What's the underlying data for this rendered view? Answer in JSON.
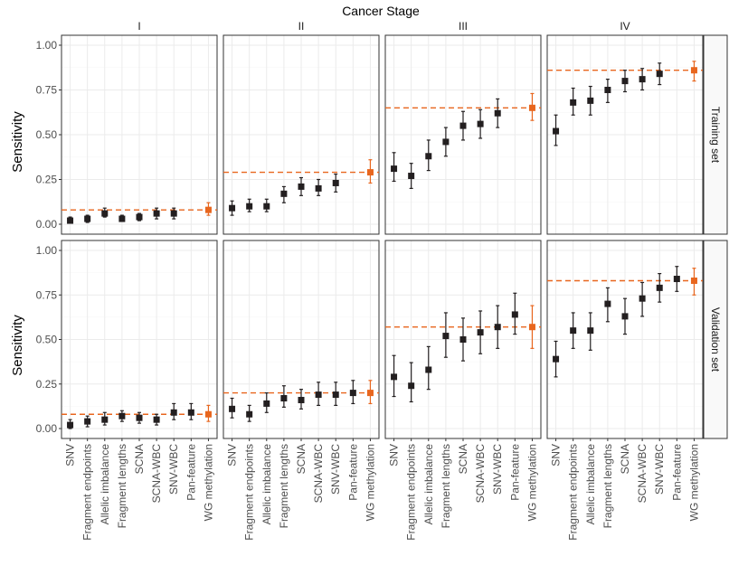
{
  "chart_data": {
    "type": "scatter",
    "title": "Cancer Stage",
    "ylabel": "Sensitivity",
    "ylim": [
      0,
      1
    ],
    "yticks": [
      "0.00",
      "0.25",
      "0.50",
      "0.75",
      "1.00"
    ],
    "ytick_values": [
      0,
      0.25,
      0.5,
      0.75,
      1.0
    ],
    "columns": [
      "I",
      "II",
      "III",
      "IV"
    ],
    "rows": [
      "Training set",
      "Validation set"
    ],
    "categories": [
      "SNV",
      "Fragment endpoints",
      "Allelic imbalance",
      "Fragment lengths",
      "SCNA",
      "SCNA-WBC",
      "SNV-WBC",
      "Pan-feature",
      "WG methylation"
    ],
    "colors": {
      "point": "#231f20",
      "highlight": "#e8661e",
      "reference": "#e8661e"
    },
    "panels": [
      {
        "row": "Training set",
        "column": "I",
        "categories": [
          "SNV",
          "Fragment endpoints",
          "Allelic imbalance",
          "Fragment lengths",
          "SCNA",
          "SCNA-WBC",
          "SNV-WBC",
          "WG methylation"
        ],
        "values": [
          0.02,
          0.03,
          0.06,
          0.03,
          0.04,
          0.06,
          0.06,
          0.08
        ],
        "lower": [
          0.01,
          0.01,
          0.04,
          0.02,
          0.02,
          0.03,
          0.03,
          0.05
        ],
        "upper": [
          0.04,
          0.05,
          0.09,
          0.05,
          0.06,
          0.09,
          0.09,
          0.12
        ],
        "reference": 0.08
      },
      {
        "row": "Training set",
        "column": "II",
        "categories": [
          "SNV",
          "Fragment endpoints",
          "Allelic imbalance",
          "Fragment lengths",
          "SCNA",
          "SCNA-WBC",
          "SNV-WBC",
          "WG methylation"
        ],
        "values": [
          0.09,
          0.1,
          0.1,
          0.17,
          0.21,
          0.2,
          0.23,
          0.29
        ],
        "lower": [
          0.05,
          0.07,
          0.07,
          0.12,
          0.16,
          0.16,
          0.18,
          0.23
        ],
        "upper": [
          0.13,
          0.14,
          0.14,
          0.21,
          0.26,
          0.25,
          0.28,
          0.36
        ],
        "reference": 0.29
      },
      {
        "row": "Training set",
        "column": "III",
        "categories": [
          "SNV",
          "Fragment endpoints",
          "Allelic imbalance",
          "Fragment lengths",
          "SCNA",
          "SCNA-WBC",
          "SNV-WBC",
          "WG methylation"
        ],
        "values": [
          0.31,
          0.27,
          0.38,
          0.46,
          0.55,
          0.56,
          0.62,
          0.65
        ],
        "lower": [
          0.24,
          0.2,
          0.3,
          0.38,
          0.47,
          0.48,
          0.54,
          0.58
        ],
        "upper": [
          0.4,
          0.34,
          0.47,
          0.54,
          0.63,
          0.64,
          0.7,
          0.73
        ],
        "reference": 0.65
      },
      {
        "row": "Training set",
        "column": "IV",
        "categories": [
          "SNV",
          "Fragment endpoints",
          "Allelic imbalance",
          "Fragment lengths",
          "SCNA",
          "SCNA-WBC",
          "SNV-WBC",
          "WG methylation"
        ],
        "values": [
          0.52,
          0.68,
          0.69,
          0.75,
          0.8,
          0.81,
          0.84,
          0.86
        ],
        "lower": [
          0.44,
          0.61,
          0.61,
          0.68,
          0.74,
          0.75,
          0.78,
          0.8
        ],
        "upper": [
          0.61,
          0.76,
          0.77,
          0.81,
          0.86,
          0.87,
          0.9,
          0.91
        ],
        "reference": 0.86
      },
      {
        "row": "Validation set",
        "column": "I",
        "categories": [
          "SNV",
          "Fragment endpoints",
          "Allelic imbalance",
          "Fragment lengths",
          "SCNA",
          "SCNA-WBC",
          "SNV-WBC",
          "Pan-feature",
          "WG methylation"
        ],
        "values": [
          0.02,
          0.04,
          0.05,
          0.07,
          0.06,
          0.05,
          0.09,
          0.09,
          0.08
        ],
        "lower": [
          0.0,
          0.01,
          0.02,
          0.04,
          0.03,
          0.02,
          0.05,
          0.05,
          0.04
        ],
        "upper": [
          0.05,
          0.07,
          0.09,
          0.1,
          0.09,
          0.08,
          0.14,
          0.14,
          0.13
        ],
        "reference": 0.08
      },
      {
        "row": "Validation set",
        "column": "II",
        "categories": [
          "SNV",
          "Fragment endpoints",
          "Allelic imbalance",
          "Fragment lengths",
          "SCNA",
          "SCNA-WBC",
          "SNV-WBC",
          "Pan-feature",
          "WG methylation"
        ],
        "values": [
          0.11,
          0.08,
          0.14,
          0.17,
          0.16,
          0.19,
          0.19,
          0.2,
          0.2
        ],
        "lower": [
          0.06,
          0.04,
          0.09,
          0.12,
          0.11,
          0.13,
          0.13,
          0.14,
          0.14
        ],
        "upper": [
          0.17,
          0.13,
          0.2,
          0.24,
          0.22,
          0.26,
          0.26,
          0.27,
          0.27
        ],
        "reference": 0.2
      },
      {
        "row": "Validation set",
        "column": "III",
        "categories": [
          "SNV",
          "Fragment endpoints",
          "Allelic imbalance",
          "Fragment lengths",
          "SCNA",
          "SCNA-WBC",
          "SNV-WBC",
          "Pan-feature",
          "WG methylation"
        ],
        "values": [
          0.29,
          0.24,
          0.33,
          0.52,
          0.5,
          0.54,
          0.57,
          0.64,
          0.57
        ],
        "lower": [
          0.18,
          0.15,
          0.22,
          0.4,
          0.38,
          0.42,
          0.45,
          0.53,
          0.45
        ],
        "upper": [
          0.41,
          0.37,
          0.46,
          0.65,
          0.62,
          0.66,
          0.69,
          0.76,
          0.69
        ],
        "reference": 0.57
      },
      {
        "row": "Validation set",
        "column": "IV",
        "categories": [
          "SNV",
          "Fragment endpoints",
          "Allelic imbalance",
          "Fragment lengths",
          "SCNA",
          "SCNA-WBC",
          "SNV-WBC",
          "Pan-feature",
          "WG methylation"
        ],
        "values": [
          0.39,
          0.55,
          0.55,
          0.7,
          0.63,
          0.73,
          0.79,
          0.84,
          0.83
        ],
        "lower": [
          0.29,
          0.45,
          0.44,
          0.6,
          0.53,
          0.63,
          0.71,
          0.77,
          0.75
        ],
        "upper": [
          0.49,
          0.65,
          0.65,
          0.79,
          0.73,
          0.82,
          0.87,
          0.91,
          0.9
        ],
        "reference": 0.83
      }
    ]
  }
}
